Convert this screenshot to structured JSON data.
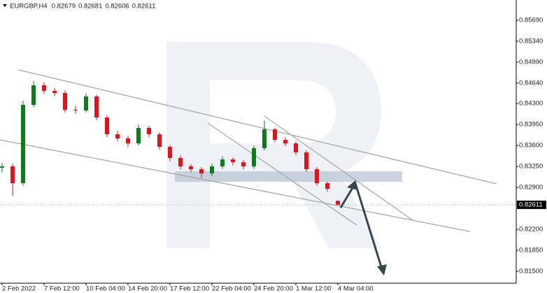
{
  "chart_data": {
    "type": "candlestick",
    "symbol": "EURGBP,H4",
    "categories": [
      "2 Feb 2022",
      null,
      null,
      null,
      "7 Feb 12:00",
      null,
      null,
      null,
      "10 Feb 04:00",
      null,
      null,
      null,
      "14 Feb 20:00",
      null,
      null,
      null,
      "17 Feb 12:00",
      null,
      null,
      null,
      "22 Feb 04:00",
      null,
      null,
      null,
      "24 Feb 20:00",
      null,
      null,
      null,
      "1 Mar 12:00",
      null,
      null,
      null,
      "4 Mar 04:00"
    ],
    "open": [
      0.8323,
      0.83252,
      0.82971,
      0.84278,
      0.84605,
      0.84512,
      0.84477,
      0.84197,
      0.84185,
      0.84418,
      0.84068,
      0.83788,
      0.83718,
      0.83636,
      0.83893,
      0.83788,
      0.83578,
      0.83392,
      0.83252,
      0.83205,
      0.83135,
      0.83252,
      0.83368,
      0.83322,
      0.83252,
      0.83555,
      0.8387,
      0.83695,
      0.83636,
      0.83485,
      0.83205,
      0.82971,
      0.82679
    ],
    "high": [
      0.8331,
      0.833,
      0.8435,
      0.8468,
      0.8466,
      0.8456,
      0.8452,
      0.8426,
      0.8447,
      0.8445,
      0.8411,
      0.8385,
      0.8376,
      0.8395,
      0.8393,
      0.8382,
      0.8361,
      0.8344,
      0.8329,
      0.8324,
      0.833,
      0.8342,
      0.834,
      0.8336,
      0.836,
      0.8402,
      0.839,
      0.8374,
      0.8367,
      0.8352,
      0.8324,
      0.83,
      0.82681
    ],
    "low": [
      0.8315,
      0.8276,
      0.8293,
      0.8424,
      0.8446,
      0.8443,
      0.8415,
      0.8413,
      0.8415,
      0.8402,
      0.8374,
      0.8367,
      0.8358,
      0.836,
      0.8374,
      0.8353,
      0.8334,
      0.832,
      0.8315,
      0.8306,
      0.8309,
      0.8321,
      0.8327,
      0.832,
      0.8321,
      0.8352,
      0.8365,
      0.8359,
      0.8344,
      0.8316,
      0.8293,
      0.8283,
      0.82606
    ],
    "close": [
      0.83252,
      0.82971,
      0.84278,
      0.84605,
      0.84512,
      0.84477,
      0.84197,
      0.84185,
      0.84418,
      0.84068,
      0.83788,
      0.83718,
      0.83636,
      0.83893,
      0.83788,
      0.83578,
      0.83392,
      0.83252,
      0.83205,
      0.83135,
      0.83252,
      0.83368,
      0.83322,
      0.83252,
      0.83555,
      0.8387,
      0.83695,
      0.83636,
      0.83485,
      0.83205,
      0.82971,
      0.82878,
      0.82611
    ],
    "up_color": "#0b7d1a",
    "down_color": "#e3121b",
    "ylim": [
      0.81303,
      0.86028
    ],
    "yticks": [
      {
        "value": 0.8569,
        "label": "0.85690"
      },
      {
        "value": 0.8534,
        "label": "0.85340"
      },
      {
        "value": 0.8499,
        "label": "0.84990"
      },
      {
        "value": 0.8464,
        "label": "0.84640"
      },
      {
        "value": 0.843,
        "label": "0.84300"
      },
      {
        "value": 0.8395,
        "label": "0.83950"
      },
      {
        "value": 0.836,
        "label": "0.83600"
      },
      {
        "value": 0.8325,
        "label": "0.83250"
      },
      {
        "value": 0.829,
        "label": "0.82900"
      },
      {
        "value": 0.822,
        "label": "0.82200"
      },
      {
        "value": 0.8185,
        "label": "0.81850"
      },
      {
        "value": 0.815,
        "label": "0.81500"
      }
    ]
  }
}
